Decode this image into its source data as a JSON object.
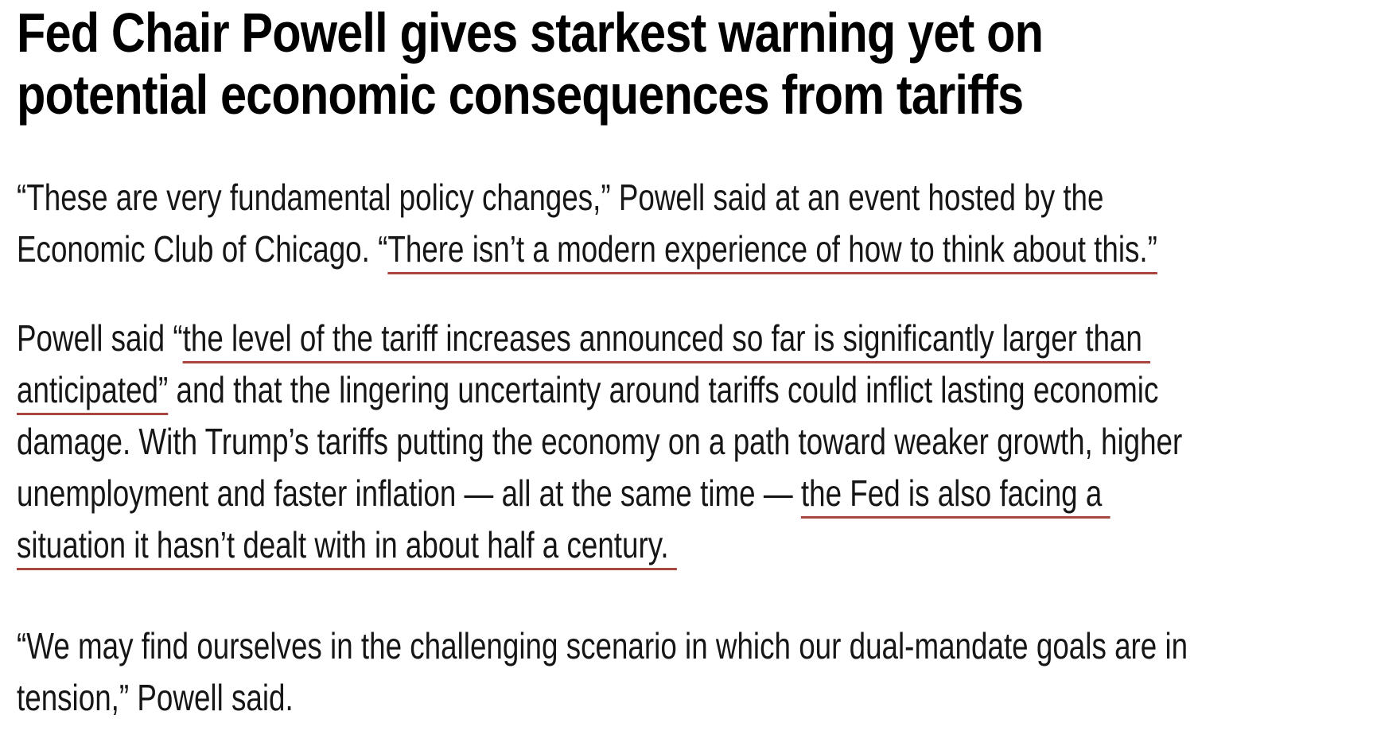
{
  "article": {
    "headline": "Fed Chair Powell gives starkest warning yet on\npotential economic consequences from tariffs",
    "link_underline_color": "#a84640",
    "headline_color": "#000000",
    "body_text_color": "#161616",
    "paragraphs": [
      {
        "runs": [
          {
            "text": "“These are very fundamental policy changes,” Powell said at an event hosted by the\nEconomic Club of Chicago. “",
            "link": false
          },
          {
            "text": "There isn’t a modern experience of how to think about this.”",
            "link": true
          }
        ]
      },
      {
        "runs": [
          {
            "text": "Powell said “",
            "link": false
          },
          {
            "text": "the level of the tariff increases announced so far is significantly larger than \nanticipated”",
            "link": true
          },
          {
            "text": " and that the lingering uncertainty around tariffs could inflict lasting economic\ndamage. With Trump’s tariffs putting the economy on a path toward weaker growth, higher\nunemployment and faster inflation — all at the same time — ",
            "link": false
          },
          {
            "text": "the Fed is also facing a \nsituation it hasn’t dealt with in about half a century. ",
            "link": true
          }
        ]
      },
      {
        "runs": [
          {
            "text": "“We may find ourselves in the challenging scenario in which our dual-mandate goals are in\ntension,” Powell said.",
            "link": false
          }
        ]
      }
    ]
  }
}
